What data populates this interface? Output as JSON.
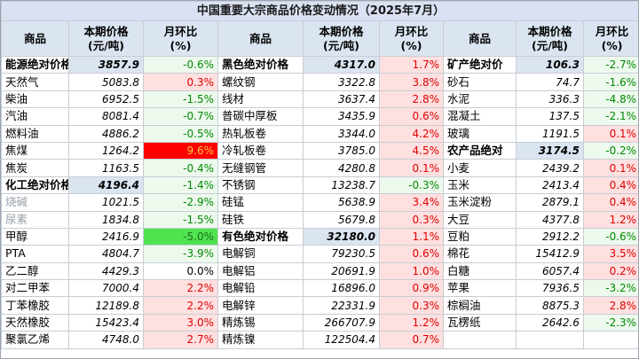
{
  "title": "中国重要大宗商品价格变动情况（2025年7月）",
  "headers": {
    "commodity": "商品",
    "price": "本期价格\n(元/吨)",
    "price_l1": "本期价格",
    "price_l2": "(元/吨)",
    "change_l1": "月环比",
    "change_l2": "(%)"
  },
  "colors": {
    "header_bg": "#dbe5f1",
    "up_bg": "#ffe0e0",
    "up_text": "#e00000",
    "down_bg": "#eef9ee",
    "down_text": "#008a00",
    "up_strong_bg": "#ff0000",
    "down_strong_bg": "#4fe34f"
  },
  "rows": [
    [
      {
        "name": "能源绝对价格",
        "price": "3857.9",
        "change": "-0.6%",
        "group": true
      },
      {
        "name": "黑色绝对价格",
        "price": "4317.0",
        "change": "1.7%",
        "group": true
      },
      {
        "name": "矿产绝对价",
        "price": "106.3",
        "change": "-2.7%",
        "group": true
      }
    ],
    [
      {
        "name": "天然气",
        "price": "5083.8",
        "change": "0.3%"
      },
      {
        "name": "螺纹钢",
        "price": "3322.8",
        "change": "3.8%"
      },
      {
        "name": "砂石",
        "price": "74.7",
        "change": "-1.6%"
      }
    ],
    [
      {
        "name": "柴油",
        "price": "6952.5",
        "change": "-1.5%"
      },
      {
        "name": "线材",
        "price": "3637.4",
        "change": "2.8%"
      },
      {
        "name": "水泥",
        "price": "336.3",
        "change": "-4.8%"
      }
    ],
    [
      {
        "name": "汽油",
        "price": "8081.4",
        "change": "-0.7%"
      },
      {
        "name": "普碳中厚板",
        "price": "3435.9",
        "change": "0.6%"
      },
      {
        "name": "混凝土",
        "price": "137.5",
        "change": "-2.1%"
      }
    ],
    [
      {
        "name": "燃料油",
        "price": "4886.2",
        "change": "-0.5%"
      },
      {
        "name": "热轧板卷",
        "price": "3344.0",
        "change": "4.2%"
      },
      {
        "name": "玻璃",
        "price": "1191.5",
        "change": "0.1%"
      }
    ],
    [
      {
        "name": "焦煤",
        "price": "1264.2",
        "change": "9.6%",
        "strong": true
      },
      {
        "name": "冷轧板卷",
        "price": "3785.0",
        "change": "4.5%"
      },
      {
        "name": "农产品绝对",
        "price": "3174.5",
        "change": "-0.2%",
        "group": true
      }
    ],
    [
      {
        "name": "焦炭",
        "price": "1163.5",
        "change": "-0.4%"
      },
      {
        "name": "无缝钢管",
        "price": "4280.8",
        "change": "0.1%"
      },
      {
        "name": "小麦",
        "price": "2439.2",
        "change": "0.1%"
      }
    ],
    [
      {
        "name": "化工绝对价格",
        "price": "4196.4",
        "change": "-1.4%",
        "group": true
      },
      {
        "name": "不锈钢",
        "price": "13238.7",
        "change": "-0.3%"
      },
      {
        "name": "玉米",
        "price": "2413.4",
        "change": "0.4%"
      }
    ],
    [
      {
        "name": "烧碱",
        "price": "1021.5",
        "change": "-2.9%",
        "faded": true
      },
      {
        "name": "硅锰",
        "price": "5638.9",
        "change": "3.4%"
      },
      {
        "name": "玉米淀粉",
        "price": "2879.1",
        "change": "0.4%"
      }
    ],
    [
      {
        "name": "尿素",
        "price": "1834.8",
        "change": "-1.5%",
        "faded": true
      },
      {
        "name": "硅铁",
        "price": "5679.8",
        "change": "0.3%"
      },
      {
        "name": "大豆",
        "price": "4377.8",
        "change": "1.2%"
      }
    ],
    [
      {
        "name": "甲醇",
        "price": "2416.9",
        "change": "-5.0%",
        "strong": true
      },
      {
        "name": "有色绝对价格",
        "price": "32180.0",
        "change": "1.1%",
        "group": true
      },
      {
        "name": "豆粕",
        "price": "2912.2",
        "change": "-0.6%"
      }
    ],
    [
      {
        "name": "PTA",
        "price": "4804.7",
        "change": "-3.9%"
      },
      {
        "name": "电解铜",
        "price": "79230.5",
        "change": "0.6%"
      },
      {
        "name": "棉花",
        "price": "15412.9",
        "change": "3.5%"
      }
    ],
    [
      {
        "name": "乙二醇",
        "price": "4429.3",
        "change": "0.0%"
      },
      {
        "name": "电解铝",
        "price": "20691.9",
        "change": "1.0%"
      },
      {
        "name": "白糖",
        "price": "6057.4",
        "change": "0.2%"
      }
    ],
    [
      {
        "name": "对二甲苯",
        "price": "7000.4",
        "change": "2.2%"
      },
      {
        "name": "电解铅",
        "price": "16896.0",
        "change": "0.9%"
      },
      {
        "name": "苹果",
        "price": "7936.5",
        "change": "-3.2%"
      }
    ],
    [
      {
        "name": "丁苯橡胶",
        "price": "12189.8",
        "change": "2.2%"
      },
      {
        "name": "电解锌",
        "price": "22331.9",
        "change": "0.3%"
      },
      {
        "name": "棕榈油",
        "price": "8875.3",
        "change": "2.8%"
      }
    ],
    [
      {
        "name": "天然橡胶",
        "price": "15423.4",
        "change": "3.0%"
      },
      {
        "name": "精炼锡",
        "price": "266707.9",
        "change": "1.2%"
      },
      {
        "name": "瓦楞纸",
        "price": "2642.6",
        "change": "-2.3%"
      }
    ],
    [
      {
        "name": "聚氯乙烯",
        "price": "4748.0",
        "change": "2.7%"
      },
      {
        "name": "精炼镍",
        "price": "122504.4",
        "change": "0.7%"
      },
      {
        "name": "",
        "price": "",
        "change": ""
      }
    ]
  ]
}
